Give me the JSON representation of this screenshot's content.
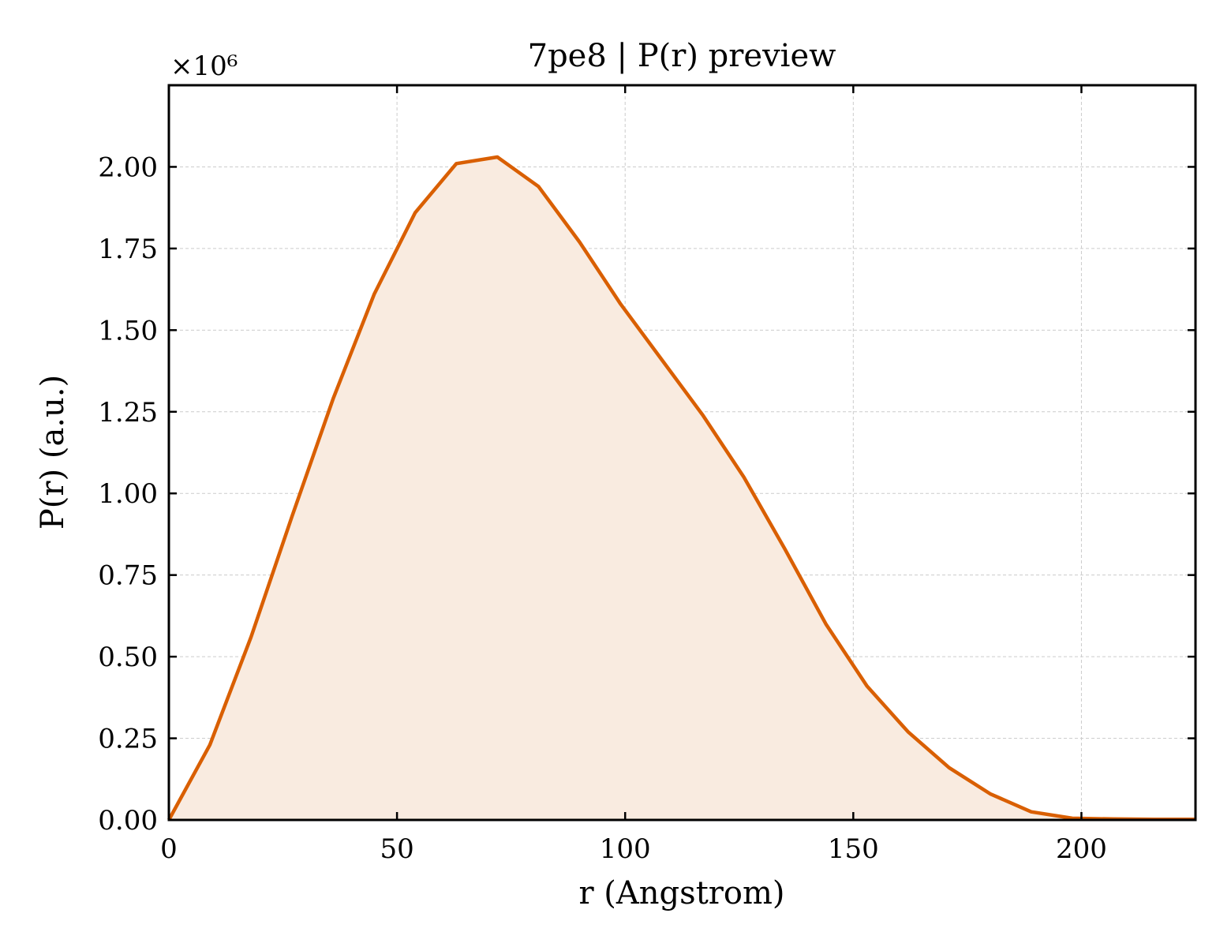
{
  "chart_data": {
    "type": "area",
    "title": "7pe8 | P(r) preview",
    "xlabel": "r (Angstrom)",
    "ylabel": "P(r) (a.u.)",
    "y_multiplier_label": "×10⁶",
    "xlim": [
      0,
      225
    ],
    "ylim": [
      0,
      2.25
    ],
    "x_ticks": [
      0,
      50,
      100,
      150,
      200
    ],
    "y_ticks": [
      0,
      0.25,
      0.5,
      0.75,
      1.0,
      1.25,
      1.5,
      1.75,
      2.0
    ],
    "x_tick_labels": [
      "0",
      "50",
      "100",
      "150",
      "200"
    ],
    "y_tick_labels": [
      "0.00",
      "0.25",
      "0.50",
      "0.75",
      "1.00",
      "1.25",
      "1.50",
      "1.75",
      "2.00"
    ],
    "grid": true,
    "line_color": "#d95f02",
    "fill_color": "#f9ebe0",
    "series": [
      {
        "x": [
          0,
          9,
          18,
          27,
          36,
          45,
          54,
          63,
          72,
          81,
          90,
          99,
          108,
          117,
          126,
          135,
          144,
          153,
          162,
          171,
          180,
          189,
          198,
          207,
          216,
          225
        ],
        "values": [
          0.0,
          0.23,
          0.56,
          0.93,
          1.29,
          1.61,
          1.86,
          2.01,
          2.03,
          1.94,
          1.77,
          1.58,
          1.41,
          1.24,
          1.05,
          0.83,
          0.6,
          0.41,
          0.27,
          0.16,
          0.08,
          0.025,
          0.005,
          0.003,
          0.002,
          0.002
        ]
      }
    ]
  }
}
